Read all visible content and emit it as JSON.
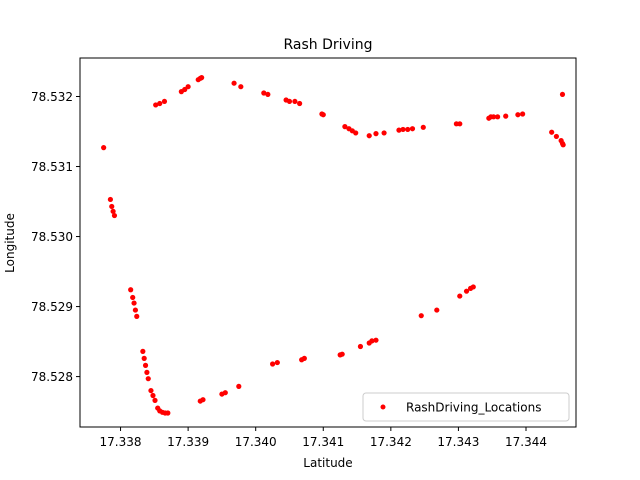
{
  "chart_data": {
    "type": "scatter",
    "title": "Rash Driving",
    "xlabel": "Latitude",
    "ylabel": "Longitude",
    "xlim": [
      17.3374,
      17.34474
    ],
    "ylim": [
      78.52728,
      78.53255
    ],
    "xticks": [
      "17.338",
      "17.339",
      "17.340",
      "17.341",
      "17.342",
      "17.343",
      "17.344"
    ],
    "xtick_values": [
      17.338,
      17.339,
      17.34,
      17.341,
      17.342,
      17.343,
      17.344
    ],
    "yticks": [
      "78.528",
      "78.529",
      "78.530",
      "78.531",
      "78.532"
    ],
    "ytick_values": [
      78.528,
      78.529,
      78.53,
      78.531,
      78.532
    ],
    "grid": false,
    "legend": {
      "position": "lower-right",
      "label": "RashDriving_Locations"
    },
    "marker_color": "#ff0000",
    "series": [
      {
        "name": "RashDriving_Locations",
        "points": [
          [
            17.33775,
            78.53127
          ],
          [
            17.33785,
            78.53053
          ],
          [
            17.33787,
            78.53043
          ],
          [
            17.33789,
            78.53036
          ],
          [
            17.33791,
            78.5303
          ],
          [
            17.33815,
            78.52924
          ],
          [
            17.33818,
            78.52913
          ],
          [
            17.3382,
            78.52905
          ],
          [
            17.33822,
            78.52895
          ],
          [
            17.33824,
            78.52886
          ],
          [
            17.33833,
            78.52836
          ],
          [
            17.33835,
            78.52826
          ],
          [
            17.33837,
            78.52816
          ],
          [
            17.33839,
            78.52806
          ],
          [
            17.33841,
            78.52797
          ],
          [
            17.33845,
            78.5278
          ],
          [
            17.33848,
            78.52773
          ],
          [
            17.33851,
            78.52766
          ],
          [
            17.33855,
            78.52755
          ],
          [
            17.33858,
            78.52751
          ],
          [
            17.33862,
            78.52749
          ],
          [
            17.33866,
            78.52748
          ],
          [
            17.3387,
            78.52748
          ],
          [
            17.33918,
            78.52765
          ],
          [
            17.33922,
            78.52767
          ],
          [
            17.3395,
            78.52775
          ],
          [
            17.33955,
            78.52777
          ],
          [
            17.33975,
            78.52786
          ],
          [
            17.34025,
            78.52818
          ],
          [
            17.34032,
            78.5282
          ],
          [
            17.34068,
            78.52824
          ],
          [
            17.34072,
            78.52826
          ],
          [
            17.34125,
            78.52831
          ],
          [
            17.34128,
            78.52832
          ],
          [
            17.34155,
            78.52843
          ],
          [
            17.34168,
            78.52848
          ],
          [
            17.34172,
            78.52851
          ],
          [
            17.34178,
            78.52852
          ],
          [
            17.34245,
            78.52887
          ],
          [
            17.34268,
            78.52895
          ],
          [
            17.34302,
            78.52915
          ],
          [
            17.34312,
            78.52922
          ],
          [
            17.34318,
            78.52926
          ],
          [
            17.34322,
            78.52928
          ],
          [
            17.33852,
            78.53188
          ],
          [
            17.33858,
            78.5319
          ],
          [
            17.33865,
            78.53193
          ],
          [
            17.3389,
            78.53207
          ],
          [
            17.33895,
            78.5321
          ],
          [
            17.339,
            78.53214
          ],
          [
            17.33915,
            78.53224
          ],
          [
            17.33918,
            78.53226
          ],
          [
            17.3392,
            78.53227
          ],
          [
            17.33968,
            78.53219
          ],
          [
            17.33978,
            78.53214
          ],
          [
            17.34012,
            78.53205
          ],
          [
            17.34018,
            78.53203
          ],
          [
            17.34045,
            78.53195
          ],
          [
            17.3405,
            78.53193
          ],
          [
            17.34058,
            78.53193
          ],
          [
            17.34065,
            78.5319
          ],
          [
            17.34098,
            78.53175
          ],
          [
            17.341,
            78.53174
          ],
          [
            17.34132,
            78.53157
          ],
          [
            17.34138,
            78.53154
          ],
          [
            17.34143,
            78.53151
          ],
          [
            17.34148,
            78.53148
          ],
          [
            17.34168,
            78.53144
          ],
          [
            17.34178,
            78.53147
          ],
          [
            17.3419,
            78.53148
          ],
          [
            17.34212,
            78.53152
          ],
          [
            17.34218,
            78.53153
          ],
          [
            17.34225,
            78.53153
          ],
          [
            17.34232,
            78.53154
          ],
          [
            17.34248,
            78.53156
          ],
          [
            17.34297,
            78.53161
          ],
          [
            17.34302,
            78.53161
          ],
          [
            17.34345,
            78.53169
          ],
          [
            17.34348,
            78.53171
          ],
          [
            17.34352,
            78.53171
          ],
          [
            17.34358,
            78.53171
          ],
          [
            17.3437,
            78.53172
          ],
          [
            17.34388,
            78.53174
          ],
          [
            17.34395,
            78.53175
          ],
          [
            17.34438,
            78.53149
          ],
          [
            17.34445,
            78.53143
          ],
          [
            17.34452,
            78.53137
          ],
          [
            17.34454,
            78.53133
          ],
          [
            17.34455,
            78.53131
          ],
          [
            17.34454,
            78.53203
          ]
        ]
      }
    ]
  }
}
